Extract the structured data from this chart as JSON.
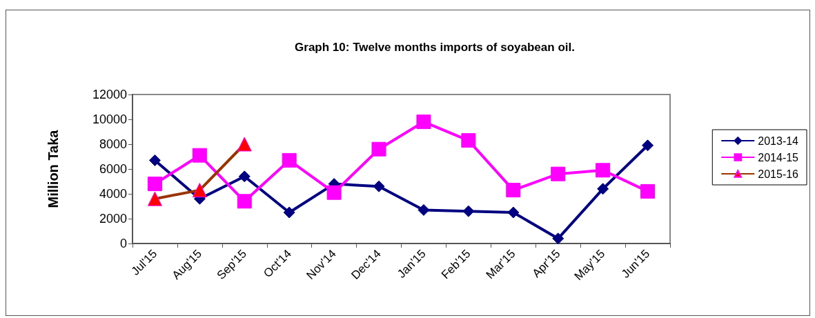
{
  "chart_data": {
    "type": "line",
    "title": "Graph 10: Twelve months imports of soyabean oil.",
    "ylabel": "Million Taka",
    "categories": [
      "Jul'15",
      "Aug'15",
      "Sep'15",
      "Oct'14",
      "Nov'14",
      "Dec'14",
      "Jan'15",
      "Feb'15",
      "Mar'15",
      "Apr'15",
      "May'15",
      "Jun'15"
    ],
    "series": [
      {
        "name": "2013-14",
        "color": "#000080",
        "marker": "diamond",
        "values": [
          6700,
          3600,
          5400,
          2500,
          4800,
          4600,
          2700,
          2600,
          2500,
          400,
          4400,
          7900
        ]
      },
      {
        "name": "2014-15",
        "color": "#ff00ff",
        "marker": "square",
        "values": [
          4800,
          7100,
          3400,
          6700,
          4100,
          7600,
          9800,
          8300,
          4300,
          5600,
          5900,
          4200
        ]
      },
      {
        "name": "2015-16",
        "color": "#993300",
        "marker": "triangle",
        "values": [
          3600,
          4300,
          8000,
          null,
          null,
          null,
          null,
          null,
          null,
          null,
          null,
          null
        ]
      }
    ],
    "ylim": [
      0,
      12000
    ],
    "yticks": [
      0,
      2000,
      4000,
      6000,
      8000,
      10000,
      12000
    ],
    "grid": false,
    "legend": "right"
  }
}
